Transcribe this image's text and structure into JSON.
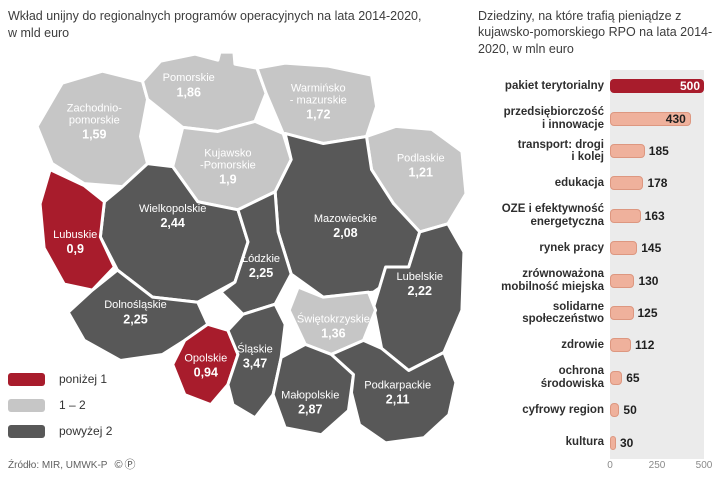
{
  "map_section": {
    "title": "Wkład unijny do regionalnych programów operacyjnych na lata 2014-2020, w mld euro",
    "source": "Źródło: MIR, UMWK-P",
    "license_icons": [
      "©",
      "Ⓟ"
    ],
    "category_colors": {
      "below1": "#a81c2c",
      "mid": "#c6c6c6",
      "above2": "#585858"
    },
    "legend": [
      {
        "label": "poniżej 1",
        "category": "below1"
      },
      {
        "label": "1 – 2",
        "category": "mid"
      },
      {
        "label": "powyżej 2",
        "category": "above2"
      }
    ],
    "regions": [
      {
        "id": "zachodniopomorskie",
        "name_lines": [
          "Zachodnio-",
          "pomorskie"
        ],
        "value": "1,59",
        "category": "mid"
      },
      {
        "id": "pomorskie",
        "name_lines": [
          "Pomorskie"
        ],
        "value": "1,86",
        "category": "mid"
      },
      {
        "id": "warminsko-mazurskie",
        "name_lines": [
          "Warmińsko",
          "- mazurskie"
        ],
        "value": "1,72",
        "category": "mid"
      },
      {
        "id": "podlaskie",
        "name_lines": [
          "Podlaskie"
        ],
        "value": "1,21",
        "category": "mid"
      },
      {
        "id": "kujawsko-pomorskie",
        "name_lines": [
          "Kujawsko",
          "-Pomorskie"
        ],
        "value": "1,9",
        "category": "mid"
      },
      {
        "id": "wielkopolskie",
        "name_lines": [
          "Wielkopolskie"
        ],
        "value": "2,44",
        "category": "above2"
      },
      {
        "id": "mazowieckie",
        "name_lines": [
          "Mazowieckie"
        ],
        "value": "2,08",
        "category": "above2"
      },
      {
        "id": "lubuskie",
        "name_lines": [
          "Lubuskie"
        ],
        "value": "0,9",
        "category": "below1"
      },
      {
        "id": "lodzkie",
        "name_lines": [
          "Łódzkie"
        ],
        "value": "2,25",
        "category": "above2"
      },
      {
        "id": "lubelskie",
        "name_lines": [
          "Lubelskie"
        ],
        "value": "2,22",
        "category": "above2"
      },
      {
        "id": "dolnoslaskie",
        "name_lines": [
          "Dolnośląskie"
        ],
        "value": "2,25",
        "category": "above2"
      },
      {
        "id": "swietokrzyskie",
        "name_lines": [
          "Świętokrzyskie"
        ],
        "value": "1,36",
        "category": "mid"
      },
      {
        "id": "opolskie",
        "name_lines": [
          "Opolskie"
        ],
        "value": "0,94",
        "category": "below1"
      },
      {
        "id": "slaskie",
        "name_lines": [
          "Śląskie"
        ],
        "value": "3,47",
        "category": "above2"
      },
      {
        "id": "malopolskie",
        "name_lines": [
          "Małopolskie"
        ],
        "value": "2,87",
        "category": "above2"
      },
      {
        "id": "podkarpackie",
        "name_lines": [
          "Podkarpackie"
        ],
        "value": "2,11",
        "category": "above2"
      }
    ]
  },
  "chart_data": {
    "type": "bar",
    "orientation": "horizontal",
    "title": "Dziedziny, na które trafią pieniądze z kujawsko-pomorskiego RPO na lata 2014-2020, w mln euro",
    "categories": [
      "pakiet terytorialny",
      "przedsiębiorczość i innowacje",
      "transport: drogi i kolej",
      "edukacja",
      "OZE i efektywność energetyczna",
      "rynek pracy",
      "zrównoważona mobilność miejska",
      "solidarne społeczeństwo",
      "zdrowie",
      "ochrona środowiska",
      "cyfrowy region",
      "kultura"
    ],
    "label_lines": [
      [
        "pakiet terytorialny"
      ],
      [
        "przedsiębiorczość",
        "i innowacje"
      ],
      [
        "transport: drogi",
        "i kolej"
      ],
      [
        "edukacja"
      ],
      [
        "OZE i efektywność",
        "energetyczna"
      ],
      [
        "rynek pracy"
      ],
      [
        "zrównoważona",
        "mobilność miejska"
      ],
      [
        "solidarne",
        "społeczeństwo"
      ],
      [
        "zdrowie"
      ],
      [
        "ochrona",
        "środowiska"
      ],
      [
        "cyfrowy region"
      ],
      [
        "kultura"
      ]
    ],
    "values": [
      500,
      430,
      185,
      178,
      163,
      145,
      130,
      125,
      112,
      65,
      50,
      30
    ],
    "value_inside": [
      true,
      true,
      false,
      false,
      false,
      false,
      false,
      false,
      false,
      false,
      false,
      false
    ],
    "highlight_index": 0,
    "xlim": [
      0,
      500
    ],
    "xticks": [
      0,
      250,
      500
    ],
    "legend_position": "none",
    "grid": "vertical-line-at-250",
    "bar_color": "#efb19c",
    "bar_border_color": "#dd9780",
    "highlight_color": "#a81c2c",
    "plot_bg": "#ebebeb"
  }
}
